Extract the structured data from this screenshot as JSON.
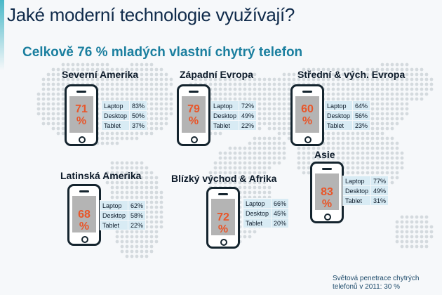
{
  "header": {
    "title": "Jaké moderní technologie využívají?",
    "subtitle": "Celkově 76 % mladých vlastní chytrý telefon"
  },
  "regions": [
    {
      "name": "Severní Amerika",
      "smartphone": "71 %",
      "stats": [
        {
          "label": "Laptop",
          "value": "83%"
        },
        {
          "label": "Desktop",
          "value": "50%"
        },
        {
          "label": "Tablet",
          "value": "37%"
        }
      ]
    },
    {
      "name": "Západní Evropa",
      "smartphone": "79 %",
      "stats": [
        {
          "label": "Laptop",
          "value": "72%"
        },
        {
          "label": "Desktop",
          "value": "49%"
        },
        {
          "label": "Tablet",
          "value": "22%"
        }
      ]
    },
    {
      "name": "Střední & vých. Evropa",
      "smartphone": "60 %",
      "stats": [
        {
          "label": "Laptop",
          "value": "64%"
        },
        {
          "label": "Desktop",
          "value": "56%"
        },
        {
          "label": "Tablet",
          "value": "23%"
        }
      ]
    },
    {
      "name": "Latinská Amerika",
      "smartphone": "68 %",
      "stats": [
        {
          "label": "Laptop",
          "value": "62%"
        },
        {
          "label": "Desktop",
          "value": "58%"
        },
        {
          "label": "Tablet",
          "value": "22%"
        }
      ]
    },
    {
      "name": "Blízký východ & Afrika",
      "smartphone": "72 %",
      "stats": [
        {
          "label": "Laptop",
          "value": "66%"
        },
        {
          "label": "Desktop",
          "value": "45%"
        },
        {
          "label": "Tablet",
          "value": "20%"
        }
      ]
    },
    {
      "name": "Asie",
      "smartphone": "83 %",
      "stats": [
        {
          "label": "Laptop",
          "value": "77%"
        },
        {
          "label": "Desktop",
          "value": "49%"
        },
        {
          "label": "Tablet",
          "value": "31%"
        }
      ]
    }
  ],
  "footer": {
    "line1": "Světová penetrace chytrých",
    "line2": "telefonů v 2011: 30 %"
  },
  "colors": {
    "accent": "#e8562a",
    "title": "#0f2a4a",
    "subtitle": "#1b7f9f",
    "stat_bg": "#d8ebf4"
  }
}
